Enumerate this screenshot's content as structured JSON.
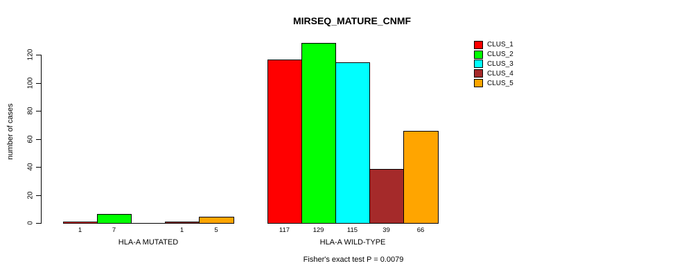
{
  "title": "MIRSEQ_MATURE_CNMF",
  "footer": "Fisher's exact test P = 0.0079",
  "y_axis": {
    "label": "number of cases",
    "ticks": [
      0,
      20,
      40,
      60,
      80,
      100,
      120
    ]
  },
  "legend": {
    "entries": [
      {
        "label": "CLUS_1",
        "color": "#FF0000"
      },
      {
        "label": "CLUS_2",
        "color": "#00FF00"
      },
      {
        "label": "CLUS_3",
        "color": "#00FFFF"
      },
      {
        "label": "CLUS_4",
        "color": "#A52A2A"
      },
      {
        "label": "CLUS_5",
        "color": "#FFA500"
      }
    ],
    "position": "top-right"
  },
  "chart_data": {
    "type": "bar",
    "title": "MIRSEQ_MATURE_CNMF",
    "xlabel": "",
    "ylabel": "number of cases",
    "ylim": [
      0,
      120
    ],
    "grid": false,
    "series_names": [
      "CLUS_1",
      "CLUS_2",
      "CLUS_3",
      "CLUS_4",
      "CLUS_5"
    ],
    "series_colors": [
      "#FF0000",
      "#00FF00",
      "#00FFFF",
      "#A52A2A",
      "#FFA500"
    ],
    "groups": [
      {
        "label": "HLA-A MUTATED",
        "values": [
          1,
          7,
          0,
          1,
          5
        ],
        "bar_labels": [
          "1",
          "7",
          "",
          "1",
          "5"
        ]
      },
      {
        "label": "HLA-A WILD-TYPE",
        "values": [
          117,
          129,
          115,
          39,
          66
        ],
        "bar_labels": [
          "117",
          "129",
          "115",
          "39",
          "66"
        ]
      }
    ],
    "annotation": "Fisher's exact test P = 0.0079"
  }
}
